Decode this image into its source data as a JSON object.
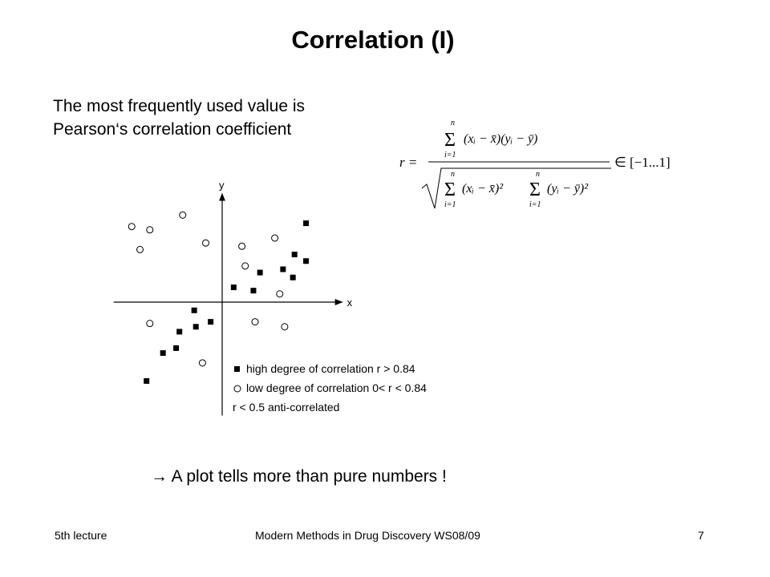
{
  "slide": {
    "title": "Correlation (I)",
    "intro_lines": [
      "The most frequently used value is",
      "Pearson‘s correlation coefficient"
    ],
    "conclusion": "→ A plot tells more than pure numbers !"
  },
  "formula": {
    "lhs": "r =",
    "sum_top": "n",
    "sum_bottom": "i=1",
    "numerator": "(xᵢ − x̄)(yᵢ − ȳ)",
    "denominator_left": "(xᵢ − x̄)²",
    "denominator_right": "(yᵢ − ȳ)²",
    "range": "∈ [−1...1]"
  },
  "chart_data": {
    "type": "scatter",
    "xlabel": "x",
    "ylabel": "y",
    "xlim": [
      -6.6,
      7.3
    ],
    "ylim": [
      -6.9,
      6.6
    ],
    "series": [
      {
        "name": "high degree of correlation r > 0.84",
        "marker": "square-filled",
        "points": [
          [
            5.1,
            4.8
          ],
          [
            4.4,
            2.9
          ],
          [
            5.1,
            2.5
          ],
          [
            3.7,
            2.0
          ],
          [
            4.3,
            1.5
          ],
          [
            2.3,
            1.8
          ],
          [
            1.9,
            0.7
          ],
          [
            0.7,
            0.9
          ],
          [
            -0.7,
            -1.2
          ],
          [
            -1.7,
            -0.5
          ],
          [
            -1.6,
            -1.5
          ],
          [
            -2.6,
            -1.8
          ],
          [
            -2.8,
            -2.8
          ],
          [
            -3.6,
            -3.1
          ],
          [
            -4.6,
            -4.8
          ]
        ]
      },
      {
        "name": "low degree of correlation 0< r < 0.84",
        "marker": "circle-open",
        "points": [
          [
            -5.5,
            4.6
          ],
          [
            -4.4,
            4.4
          ],
          [
            -2.4,
            5.3
          ],
          [
            -5.0,
            3.2
          ],
          [
            -1.0,
            3.6
          ],
          [
            1.2,
            3.4
          ],
          [
            3.2,
            3.9
          ],
          [
            1.4,
            2.2
          ],
          [
            3.5,
            0.5
          ],
          [
            2.0,
            -1.2
          ],
          [
            3.8,
            -1.5
          ],
          [
            -4.4,
            -1.3
          ],
          [
            -1.2,
            -3.7
          ]
        ]
      }
    ],
    "legend": [
      "high degree of correlation r > 0.84",
      "low degree of correlation 0< r < 0.84",
      "r < 0.5 anti-correlated"
    ],
    "legend_position": "bottom-right"
  },
  "footer": {
    "left": "5th lecture",
    "center": "Modern Methods in Drug Discovery WS08/09",
    "right": "7"
  }
}
